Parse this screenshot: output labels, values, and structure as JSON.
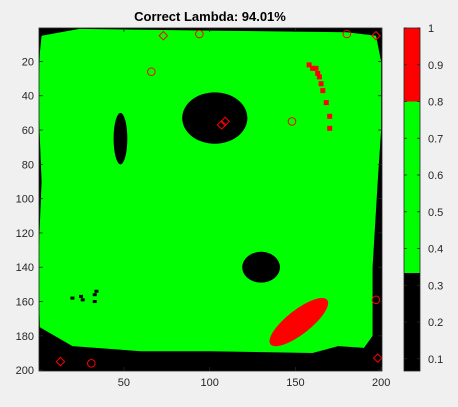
{
  "chart_data": {
    "type": "heatmap",
    "title": "Correct Lambda: 94.01%",
    "xlabel": "",
    "ylabel": "",
    "xlim": [
      0.5,
      200.5
    ],
    "ylim": [
      0.5,
      200.5
    ],
    "y_reversed": true,
    "x_ticks": [
      50,
      100,
      150,
      200
    ],
    "x_tick_labels": [
      "50",
      "100",
      "150",
      "200"
    ],
    "y_ticks": [
      20,
      40,
      60,
      80,
      100,
      120,
      140,
      160,
      180,
      200
    ],
    "y_tick_labels": [
      "20",
      "40",
      "60",
      "80",
      "100",
      "120",
      "140",
      "160",
      "180",
      "200"
    ],
    "classes": [
      {
        "label": "black",
        "color": "#000000"
      },
      {
        "label": "green",
        "color": "#00ff00"
      },
      {
        "label": "red",
        "color": "#ff0000"
      }
    ],
    "background_class": "black",
    "main_region": {
      "class": "green",
      "polygon": [
        [
          2,
          5
        ],
        [
          24,
          1
        ],
        [
          100,
          2
        ],
        [
          180,
          3
        ],
        [
          197,
          5
        ],
        [
          200,
          20
        ],
        [
          200,
          60
        ],
        [
          198,
          90
        ],
        [
          195,
          140
        ],
        [
          195,
          180
        ],
        [
          190,
          187
        ],
        [
          175,
          186
        ],
        [
          160,
          190
        ],
        [
          100,
          189
        ],
        [
          60,
          189
        ],
        [
          20,
          186
        ],
        [
          1,
          175
        ],
        [
          0,
          140
        ],
        [
          2,
          90
        ],
        [
          0,
          40
        ],
        [
          1,
          15
        ]
      ]
    },
    "holes": [
      {
        "class": "black",
        "shape": "ellipse",
        "cx": 103,
        "cy": 53,
        "rx": 19,
        "ry": 15
      },
      {
        "class": "black",
        "shape": "ellipse",
        "cx": 130,
        "cy": 140,
        "rx": 11,
        "ry": 9
      },
      {
        "class": "black",
        "shape": "ellipse",
        "cx": 48,
        "cy": 65,
        "rx": 4,
        "ry": 15
      }
    ],
    "red_regions": [
      {
        "class": "red",
        "shape": "ellipse",
        "cx": 152,
        "cy": 172,
        "rx": 21,
        "ry": 7,
        "rotation": -38
      },
      {
        "class": "red",
        "shape": "speckle",
        "points": [
          [
            158,
            22
          ],
          [
            160,
            24
          ],
          [
            162,
            24
          ],
          [
            163,
            27
          ],
          [
            164,
            29
          ],
          [
            165,
            33
          ],
          [
            166,
            37
          ],
          [
            168,
            44
          ],
          [
            170,
            52
          ],
          [
            170,
            59
          ]
        ]
      }
    ],
    "small_marks": {
      "black_speckle": [
        [
          20,
          158
        ],
        [
          25,
          157
        ],
        [
          26,
          159
        ],
        [
          33,
          156
        ],
        [
          33,
          160
        ],
        [
          34,
          154
        ]
      ]
    },
    "markers": {
      "circles": [
        [
          94,
          4
        ],
        [
          180,
          4
        ],
        [
          66,
          26
        ],
        [
          148,
          55
        ],
        [
          197,
          159
        ],
        [
          31,
          196
        ]
      ],
      "diamonds": [
        [
          73,
          5
        ],
        [
          197,
          5
        ],
        [
          107,
          57
        ],
        [
          109,
          55
        ],
        [
          13,
          195
        ],
        [
          198,
          193
        ]
      ],
      "color": "#ff0000"
    },
    "colorbar": {
      "colors": [
        "#000000",
        "#00ff00",
        "#ff0000"
      ],
      "boundaries": [
        0.0667,
        0.3333,
        0.8,
        1.0
      ],
      "ticks": [
        0.1,
        0.2,
        0.3,
        0.4,
        0.5,
        0.6,
        0.7,
        0.8,
        0.9,
        1
      ],
      "tick_labels": [
        "0.1",
        "0.2",
        "0.3",
        "0.4",
        "0.5",
        "0.6",
        "0.7",
        "0.8",
        "0.9",
        "1"
      ]
    }
  }
}
